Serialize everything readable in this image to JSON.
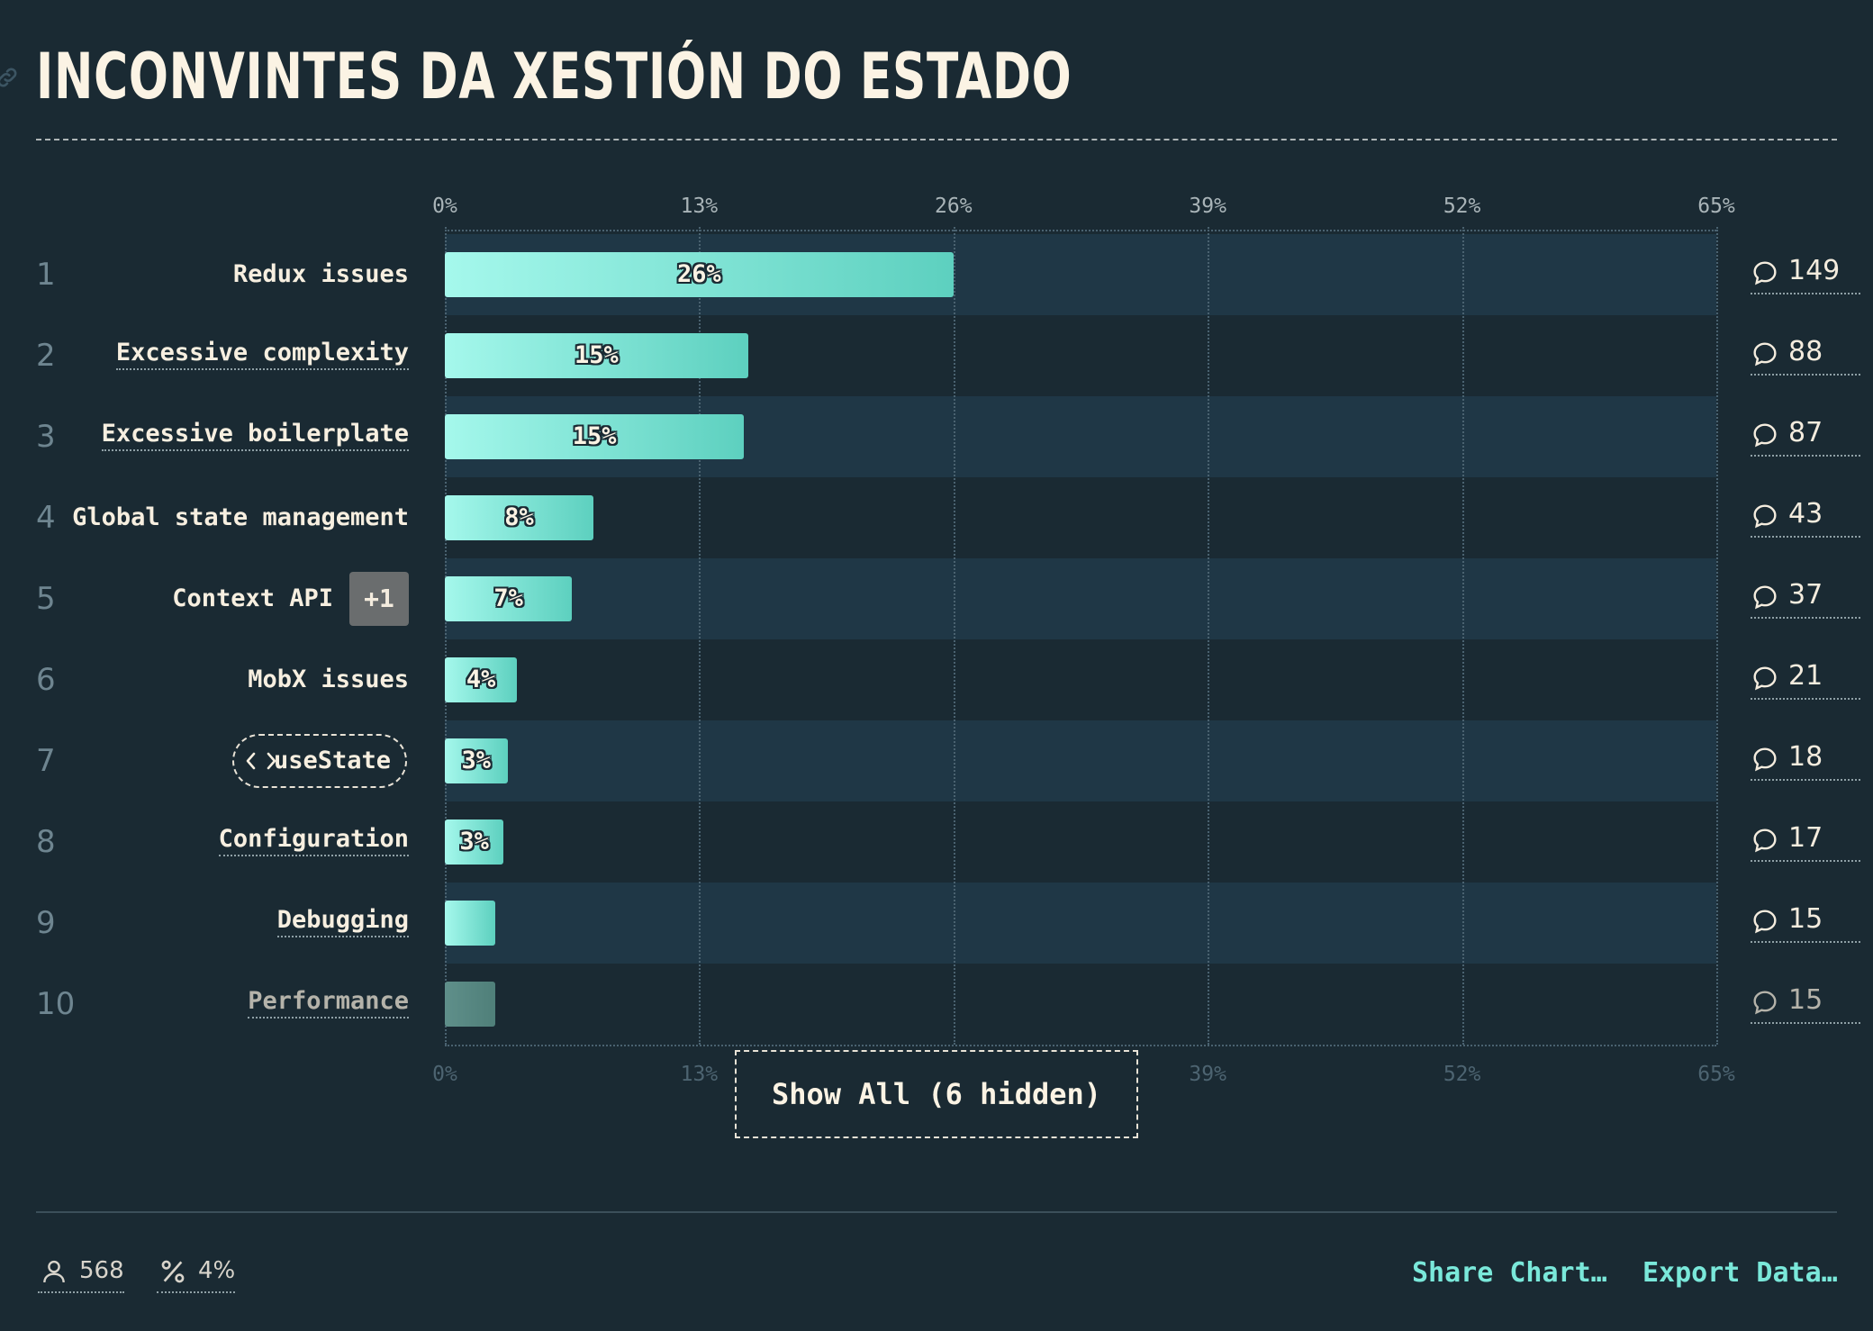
{
  "title": "INCONVINTES DA XESTIÓN DO ESTADO",
  "accent_color": "#7ae8da",
  "bar_gradient": [
    "#a5f8ec",
    "#5dd0bf"
  ],
  "chart_data": {
    "type": "bar",
    "orientation": "horizontal",
    "xlim": [
      0,
      65
    ],
    "x_ticks": [
      "0%",
      "13%",
      "26%",
      "39%",
      "52%",
      "65%"
    ],
    "grid": true,
    "rows": [
      {
        "rank": "1",
        "label": "Redux issues",
        "value": 26,
        "value_label": "26%",
        "count": "149"
      },
      {
        "rank": "2",
        "label": "Excessive complexity",
        "value": 15.5,
        "value_label": "15%",
        "count": "88"
      },
      {
        "rank": "3",
        "label": "Excessive boilerplate",
        "value": 15.3,
        "value_label": "15%",
        "count": "87"
      },
      {
        "rank": "4",
        "label": "Global state management",
        "value": 7.6,
        "value_label": "8%",
        "count": "43"
      },
      {
        "rank": "5",
        "label": "Context API",
        "badge": "+1",
        "value": 6.5,
        "value_label": "7%",
        "count": "37"
      },
      {
        "rank": "6",
        "label": "MobX issues",
        "value": 3.7,
        "value_label": "4%",
        "count": "21"
      },
      {
        "rank": "7",
        "label": "useState",
        "value": 3.2,
        "value_label": "3%",
        "count": "18"
      },
      {
        "rank": "8",
        "label": "Configuration",
        "value": 3.0,
        "value_label": "3%",
        "count": "17"
      },
      {
        "rank": "9",
        "label": "Debugging",
        "value": 2.6,
        "value_label": "",
        "count": "15"
      },
      {
        "rank": "10",
        "label": "Performance",
        "value": 2.6,
        "value_label": "",
        "count": "15"
      }
    ]
  },
  "show_all_label": "Show All (6 hidden)",
  "footer": {
    "respondents": "568",
    "percent": "4%",
    "share_label": "Share Chart…",
    "export_label": "Export Data…"
  }
}
